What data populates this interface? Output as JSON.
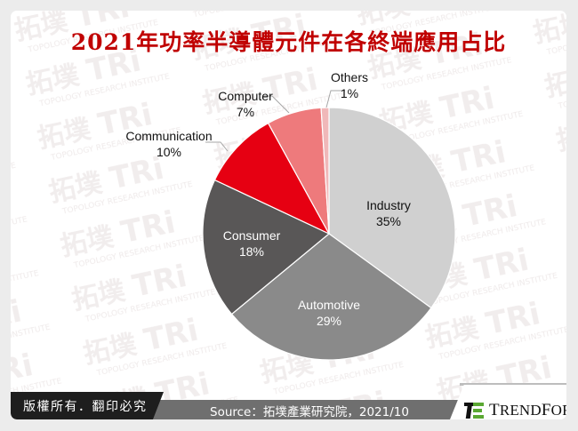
{
  "title": "2021年功率半導體元件在各終端應用占比",
  "footer": {
    "copyright": "版權所有．翻印必究",
    "source": "Source：拓墣產業研究院，2021/10",
    "logo_text_T": "T",
    "logo_text_rend": "REND",
    "logo_text_F": "F",
    "logo_text_orce": "ORCE",
    "logo_icon": "trendforce-logo-icon"
  },
  "watermark": {
    "text_cn": "拓墣",
    "text_en": "TRi",
    "subtext": "TOPOLOGY RESEARCH INSTITUTE"
  },
  "colors": {
    "title": "#c00000",
    "industry": "#d0d0d0",
    "automotive": "#8a8a8a",
    "consumer": "#595757",
    "communication": "#e60012",
    "computer": "#ee7a7c",
    "others": "#f0b8b9",
    "footer_black": "#1e1e1e",
    "footer_gray": "#6f6f6f",
    "logo_green": "#5aa832"
  },
  "chart_data": {
    "type": "pie",
    "title": "2021年功率半導體元件在各終端應用占比",
    "categories": [
      "Industry",
      "Automotive",
      "Consumer",
      "Communication",
      "Computer",
      "Others"
    ],
    "values": [
      35,
      29,
      18,
      10,
      7,
      1
    ],
    "unit": "%",
    "start_angle": "12 o'clock, clockwise",
    "labels": [
      {
        "name": "Industry",
        "pct": "35%",
        "position": "inside"
      },
      {
        "name": "Automotive",
        "pct": "29%",
        "position": "inside"
      },
      {
        "name": "Consumer",
        "pct": "18%",
        "position": "inside"
      },
      {
        "name": "Communication",
        "pct": "10%",
        "position": "outside"
      },
      {
        "name": "Computer",
        "pct": "7%",
        "position": "outside"
      },
      {
        "name": "Others",
        "pct": "1%",
        "position": "outside"
      }
    ],
    "source": "Source：拓墣產業研究院，2021/10"
  }
}
